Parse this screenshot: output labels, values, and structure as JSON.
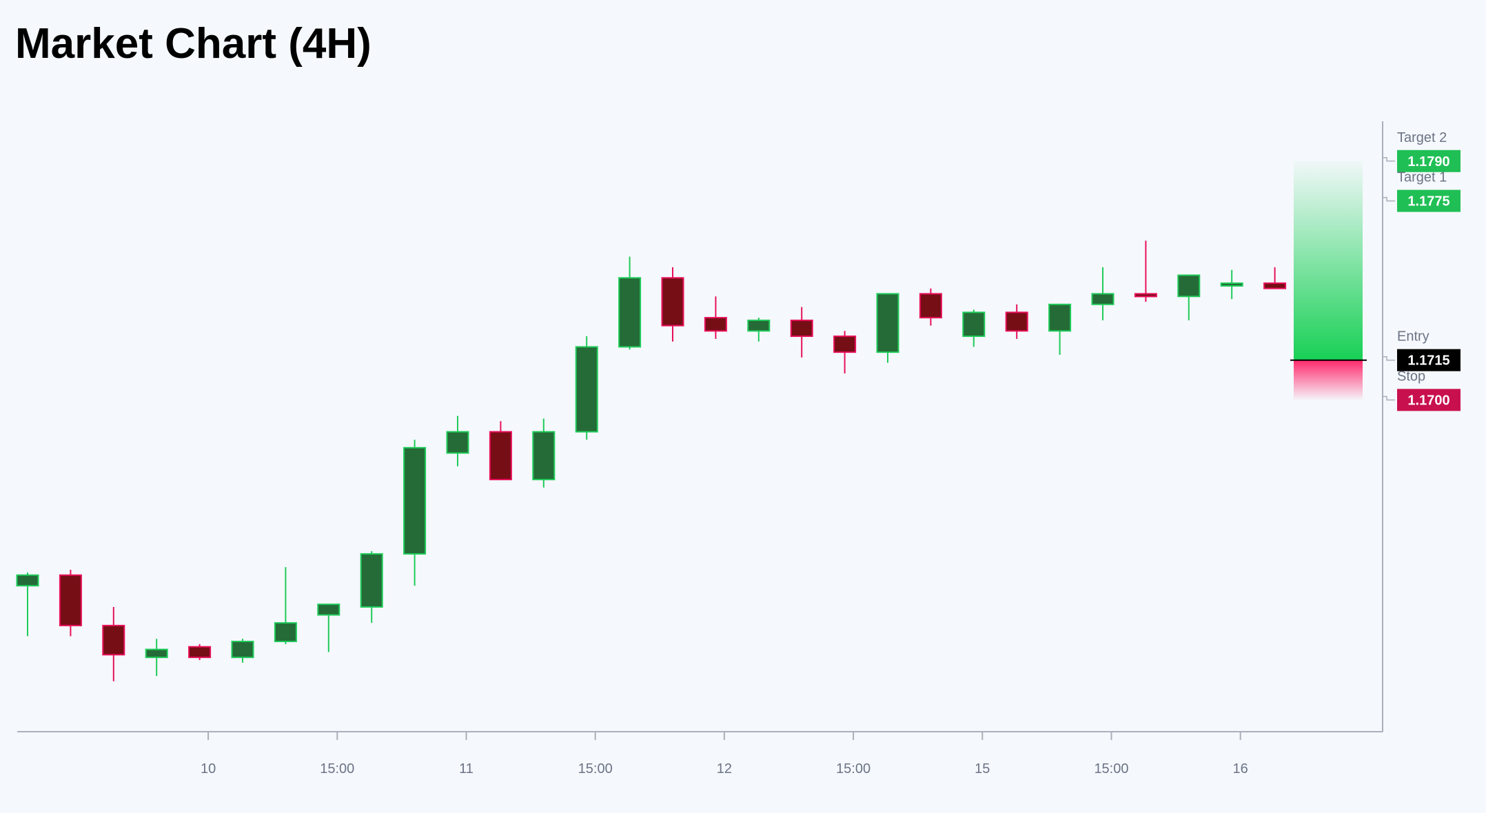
{
  "title": "Market Chart (4H)",
  "chart_data": {
    "type": "candlestick",
    "ylim": [
      1.1575,
      1.1805
    ],
    "x_ticks": [
      {
        "index": 4.2,
        "label": "10"
      },
      {
        "index": 7.2,
        "label": "15:00"
      },
      {
        "index": 10.2,
        "label": "11"
      },
      {
        "index": 13.2,
        "label": "15:00"
      },
      {
        "index": 16.2,
        "label": "12"
      },
      {
        "index": 19.2,
        "label": "15:00"
      },
      {
        "index": 22.2,
        "label": "15"
      },
      {
        "index": 25.2,
        "label": "15:00"
      },
      {
        "index": 28.2,
        "label": "16"
      }
    ],
    "candles": [
      {
        "o": 1.163,
        "h": 1.1635,
        "l": 1.1611,
        "c": 1.1634
      },
      {
        "o": 1.1634,
        "h": 1.1636,
        "l": 1.1611,
        "c": 1.1615
      },
      {
        "o": 1.1615,
        "h": 1.1622,
        "l": 1.1594,
        "c": 1.1604
      },
      {
        "o": 1.1603,
        "h": 1.161,
        "l": 1.1596,
        "c": 1.1606
      },
      {
        "o": 1.1607,
        "h": 1.1608,
        "l": 1.1602,
        "c": 1.1603
      },
      {
        "o": 1.1603,
        "h": 1.161,
        "l": 1.1601,
        "c": 1.1609
      },
      {
        "o": 1.1609,
        "h": 1.1637,
        "l": 1.1608,
        "c": 1.1616
      },
      {
        "o": 1.1619,
        "h": 1.1621,
        "l": 1.1605,
        "c": 1.1623
      },
      {
        "o": 1.1622,
        "h": 1.1643,
        "l": 1.1616,
        "c": 1.1642
      },
      {
        "o": 1.1642,
        "h": 1.1685,
        "l": 1.163,
        "c": 1.1682
      },
      {
        "o": 1.168,
        "h": 1.1694,
        "l": 1.1675,
        "c": 1.1688
      },
      {
        "o": 1.1688,
        "h": 1.1692,
        "l": 1.167,
        "c": 1.167
      },
      {
        "o": 1.167,
        "h": 1.1693,
        "l": 1.1667,
        "c": 1.1688
      },
      {
        "o": 1.1688,
        "h": 1.1724,
        "l": 1.1685,
        "c": 1.172
      },
      {
        "o": 1.172,
        "h": 1.1754,
        "l": 1.1719,
        "c": 1.1746
      },
      {
        "o": 1.1746,
        "h": 1.175,
        "l": 1.1722,
        "c": 1.1728
      },
      {
        "o": 1.1731,
        "h": 1.1739,
        "l": 1.1723,
        "c": 1.1726
      },
      {
        "o": 1.1726,
        "h": 1.1731,
        "l": 1.1722,
        "c": 1.173
      },
      {
        "o": 1.173,
        "h": 1.1735,
        "l": 1.1716,
        "c": 1.1724
      },
      {
        "o": 1.1724,
        "h": 1.1726,
        "l": 1.171,
        "c": 1.1718
      },
      {
        "o": 1.1718,
        "h": 1.174,
        "l": 1.1714,
        "c": 1.174
      },
      {
        "o": 1.174,
        "h": 1.1742,
        "l": 1.1728,
        "c": 1.1731
      },
      {
        "o": 1.1724,
        "h": 1.1734,
        "l": 1.172,
        "c": 1.1733
      },
      {
        "o": 1.1733,
        "h": 1.1736,
        "l": 1.1723,
        "c": 1.1726
      },
      {
        "o": 1.1726,
        "h": 1.1736,
        "l": 1.1717,
        "c": 1.1736
      },
      {
        "o": 1.1736,
        "h": 1.175,
        "l": 1.173,
        "c": 1.174
      },
      {
        "o": 1.174,
        "h": 1.176,
        "l": 1.1737,
        "c": 1.1739
      },
      {
        "o": 1.1739,
        "h": 1.1747,
        "l": 1.173,
        "c": 1.1747
      },
      {
        "o": 1.1743,
        "h": 1.1749,
        "l": 1.1738,
        "c": 1.1744
      },
      {
        "o": 1.1744,
        "h": 1.175,
        "l": 1.1742,
        "c": 1.1742
      }
    ],
    "levels": [
      {
        "name": "Target 2",
        "value": "1.1790",
        "price": 1.179,
        "color": "#20bf55"
      },
      {
        "name": "Target 1",
        "value": "1.1775",
        "price": 1.1775,
        "color": "#20bf55"
      },
      {
        "name": "Entry",
        "value": "1.1715",
        "price": 1.1715,
        "color": "#000000"
      },
      {
        "name": "Stop",
        "value": "1.1700",
        "price": 1.17,
        "color": "#c8104f"
      }
    ],
    "colors": {
      "bull_body": "#256b37",
      "bull_edge": "#1fcb5a",
      "bear_body": "#760e16",
      "bear_edge": "#e8105a",
      "axis": "#a9afbb",
      "profit_zone": "#18d055",
      "loss_zone": "#ff2a6d"
    }
  }
}
